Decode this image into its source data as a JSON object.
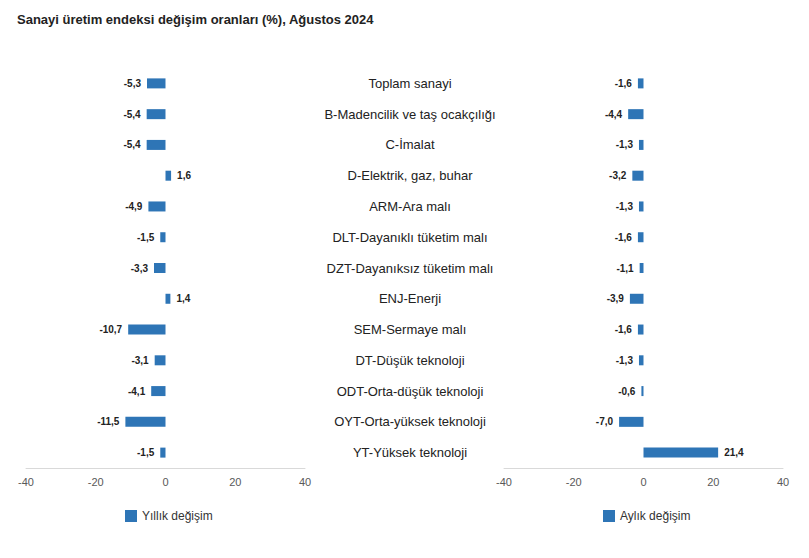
{
  "chart_data": [
    {
      "type": "bar",
      "title": "Sanayi üretim endeksi değişim oranları (%), Ağustos 2024",
      "orientation": "horizontal",
      "categories": [
        "Toplam sanayi",
        "B-Madencilik ve taş ocakçılığı",
        "C-İmalat",
        "D-Elektrik, gaz, buhar",
        "ARM-Ara malı",
        "DLT-Dayanıklı tüketim malı",
        "DZT-Dayanıksız tüketim malı",
        "ENJ-Enerji",
        "SEM-Sermaye malı",
        "DT-Düşük teknoloji",
        "ODT-Orta-düşük teknoloji",
        "OYT-Orta-yüksek teknoloji",
        "YT-Yüksek teknoloji"
      ],
      "series": [
        {
          "name": "Yıllık değişim",
          "color": "#2e75b6",
          "values": [
            -5.3,
            -5.4,
            -5.4,
            1.6,
            -4.9,
            -1.5,
            -3.3,
            1.4,
            -10.7,
            -3.1,
            -4.1,
            -11.5,
            -1.5
          ],
          "value_labels": [
            "-5,3",
            "-5,4",
            "-5,4",
            "1,6",
            "-4,9",
            "-1,5",
            "-3,3",
            "1,4",
            "-10,7",
            "-3,1",
            "-4,1",
            "-11,5",
            "-1,5"
          ]
        }
      ],
      "xlim": [
        -40,
        40
      ],
      "xticks": [
        -40,
        -20,
        0,
        20,
        40
      ],
      "data_labels": true,
      "legend": "bottom"
    },
    {
      "type": "bar",
      "orientation": "horizontal",
      "categories": [
        "Toplam sanayi",
        "B-Madencilik ve taş ocakçılığı",
        "C-İmalat",
        "D-Elektrik, gaz, buhar",
        "ARM-Ara malı",
        "DLT-Dayanıklı tüketim malı",
        "DZT-Dayanıksız tüketim malı",
        "ENJ-Enerji",
        "SEM-Sermaye malı",
        "DT-Düşük teknoloji",
        "ODT-Orta-düşük teknoloji",
        "OYT-Orta-yüksek teknoloji",
        "YT-Yüksek teknoloji"
      ],
      "series": [
        {
          "name": "Aylık değişim",
          "color": "#2e75b6",
          "values": [
            -1.6,
            -4.4,
            -1.3,
            -3.2,
            -1.3,
            -1.6,
            -1.1,
            -3.9,
            -1.6,
            -1.3,
            -0.6,
            -7.0,
            21.4
          ],
          "value_labels": [
            "-1,6",
            "-4,4",
            "-1,3",
            "-3,2",
            "-1,3",
            "-1,6",
            "-1,1",
            "-3,9",
            "-1,6",
            "-1,3",
            "-0,6",
            "-7,0",
            "21,4"
          ]
        }
      ],
      "xlim": [
        -40,
        40
      ],
      "xticks": [
        -40,
        -20,
        0,
        20,
        40
      ],
      "data_labels": true,
      "legend": "bottom"
    }
  ]
}
